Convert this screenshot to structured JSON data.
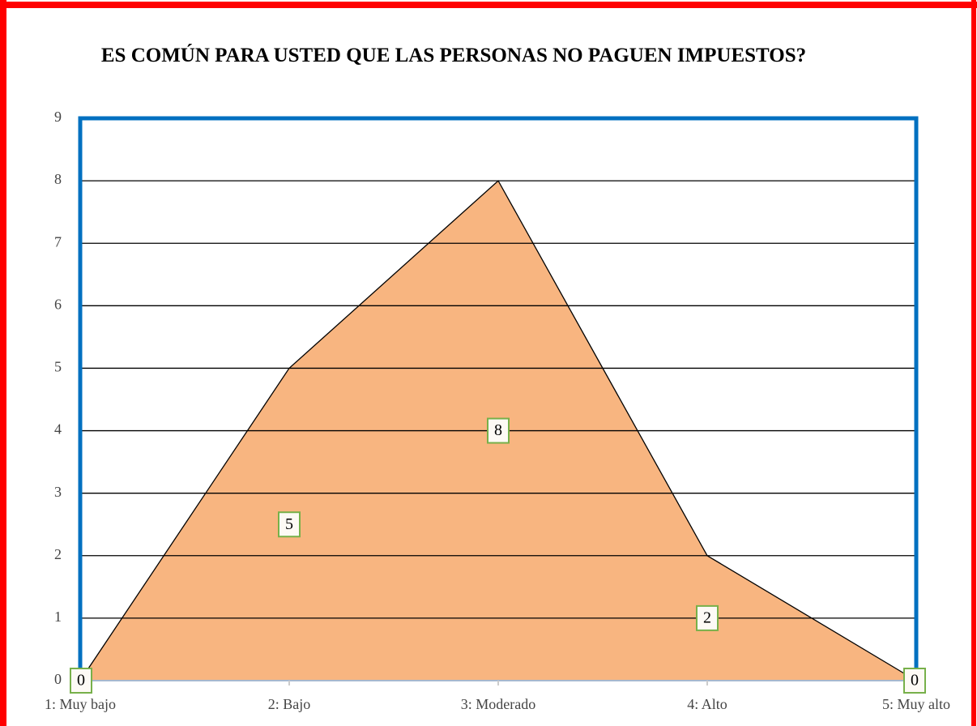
{
  "chart_data": {
    "type": "area",
    "title": "ES COMÚN PARA USTED QUE LAS PERSONAS NO PAGUEN IMPUESTOS?",
    "categories": [
      "1: Muy bajo",
      "2: Bajo",
      "3: Moderado",
      "4: Alto",
      "5: Muy alto"
    ],
    "values": [
      0,
      5,
      8,
      2,
      0
    ],
    "color": "#f8b580",
    "ylim": [
      0,
      9
    ],
    "yticks": [
      0,
      1,
      2,
      3,
      4,
      5,
      6,
      7,
      8,
      9
    ],
    "grid": true
  }
}
